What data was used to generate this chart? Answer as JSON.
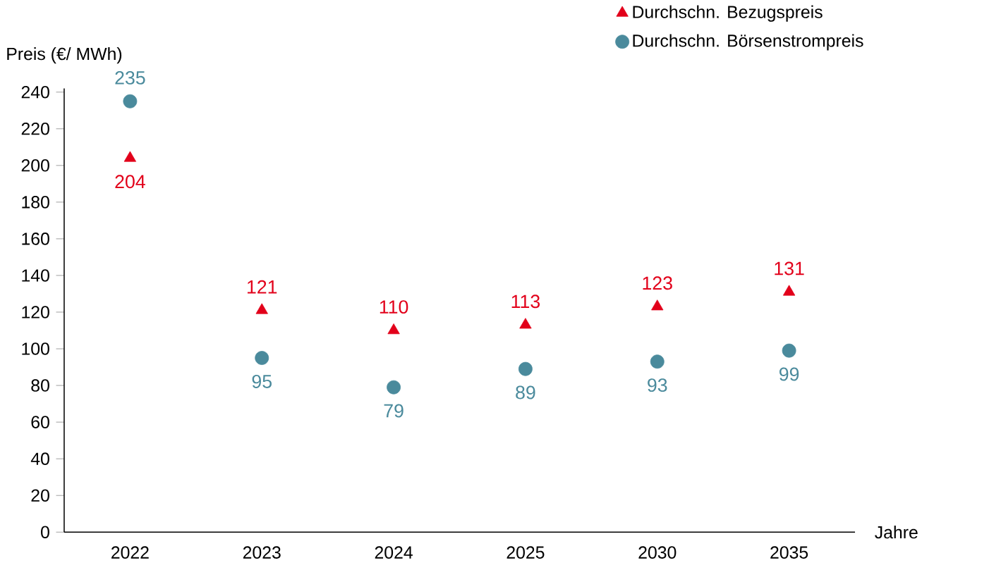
{
  "chart_data": {
    "type": "scatter",
    "ylabel": "Preis (€/ MWh)",
    "xlabel": "Jahre",
    "categories": [
      "2022",
      "2023",
      "2024",
      "2025",
      "2030",
      "2035"
    ],
    "series": [
      {
        "name": "Durchschn. Bezugspreis",
        "color": "#e2001a",
        "marker": "triangle",
        "values": [
          204,
          121,
          110,
          113,
          123,
          131
        ]
      },
      {
        "name": "Durchschn. Börsenstrompreis",
        "color": "#4a8a9c",
        "marker": "circle",
        "values": [
          235,
          95,
          79,
          89,
          93,
          99
        ]
      }
    ],
    "ylim": [
      0,
      242
    ],
    "yticks": [
      0,
      20,
      40,
      60,
      80,
      100,
      120,
      140,
      160,
      180,
      200,
      220,
      240
    ],
    "data_labels": true,
    "legend": "top right"
  }
}
